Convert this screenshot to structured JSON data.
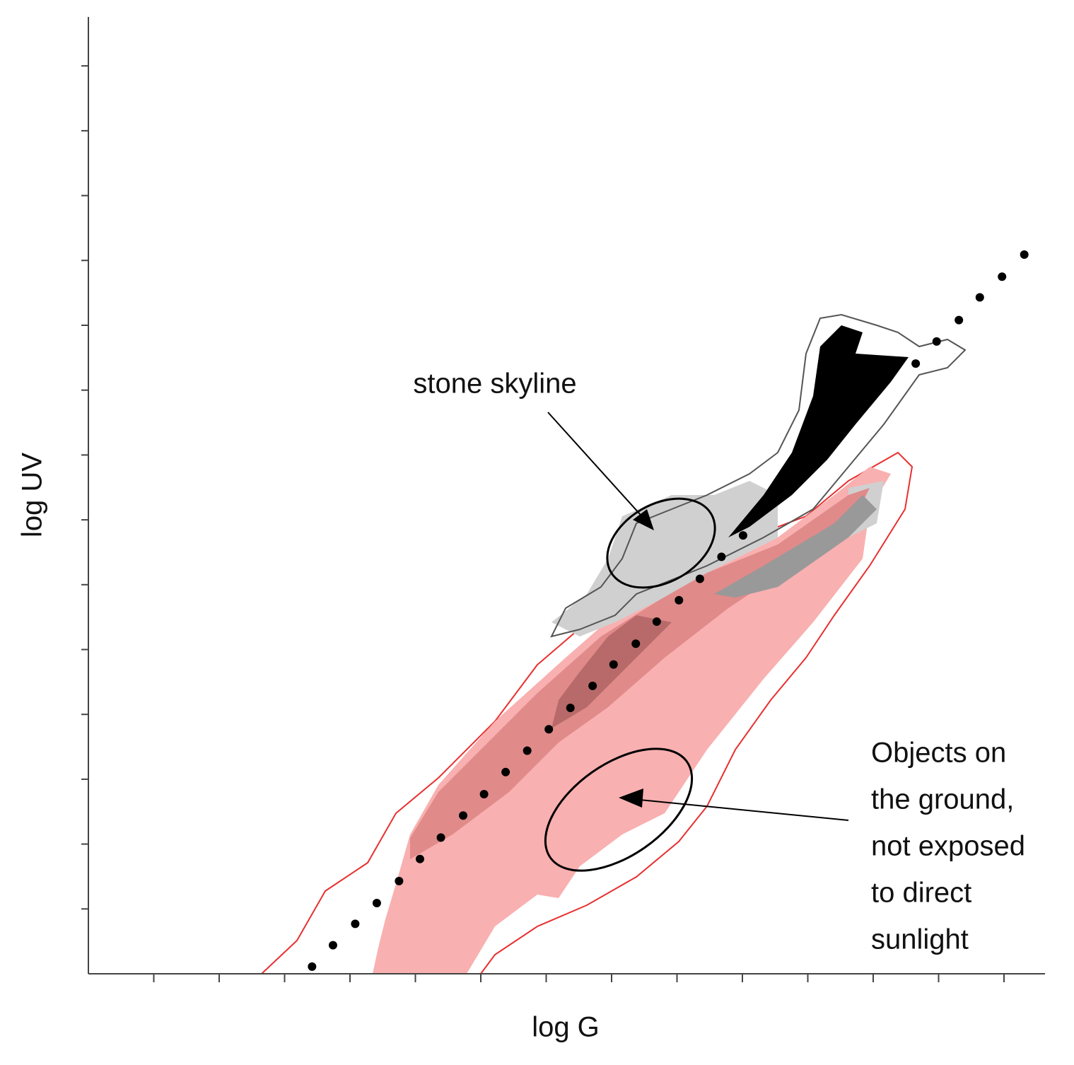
{
  "chart_data": {
    "type": "scatter",
    "x_label": "log G",
    "y_label": "log UV",
    "x": [
      3.42,
      3.74,
      4.08,
      4.41,
      4.75,
      5.07,
      5.39,
      5.73,
      6.05,
      6.38,
      6.71,
      7.04,
      7.37,
      7.71,
      8.03,
      8.37,
      8.69,
      9.03,
      9.35,
      9.68,
      10.01,
      12.65,
      12.97,
      13.31,
      13.63,
      13.97,
      14.31
    ],
    "values": [
      0.11,
      0.44,
      0.77,
      1.09,
      1.43,
      1.77,
      2.1,
      2.44,
      2.77,
      3.11,
      3.44,
      3.77,
      4.1,
      4.44,
      4.77,
      5.09,
      5.43,
      5.76,
      6.09,
      6.43,
      6.76,
      9.41,
      9.75,
      10.08,
      10.43,
      10.75,
      11.09
    ],
    "color": "#000000",
    "xlim": [
      0,
      14.6
    ],
    "ylim": [
      0,
      14.75
    ],
    "xticks": [
      1,
      2,
      3,
      4,
      5,
      6,
      7,
      8,
      9,
      10,
      11,
      12,
      13,
      14
    ],
    "yticks": [
      1,
      2,
      3,
      4,
      5,
      6,
      7,
      8,
      9,
      10,
      11,
      12,
      13,
      14
    ],
    "annotations": [
      [
        "stone skyline"
      ],
      [
        "Objects on",
        "the ground,",
        "not exposed",
        "to direct",
        "sunlight"
      ]
    ]
  }
}
